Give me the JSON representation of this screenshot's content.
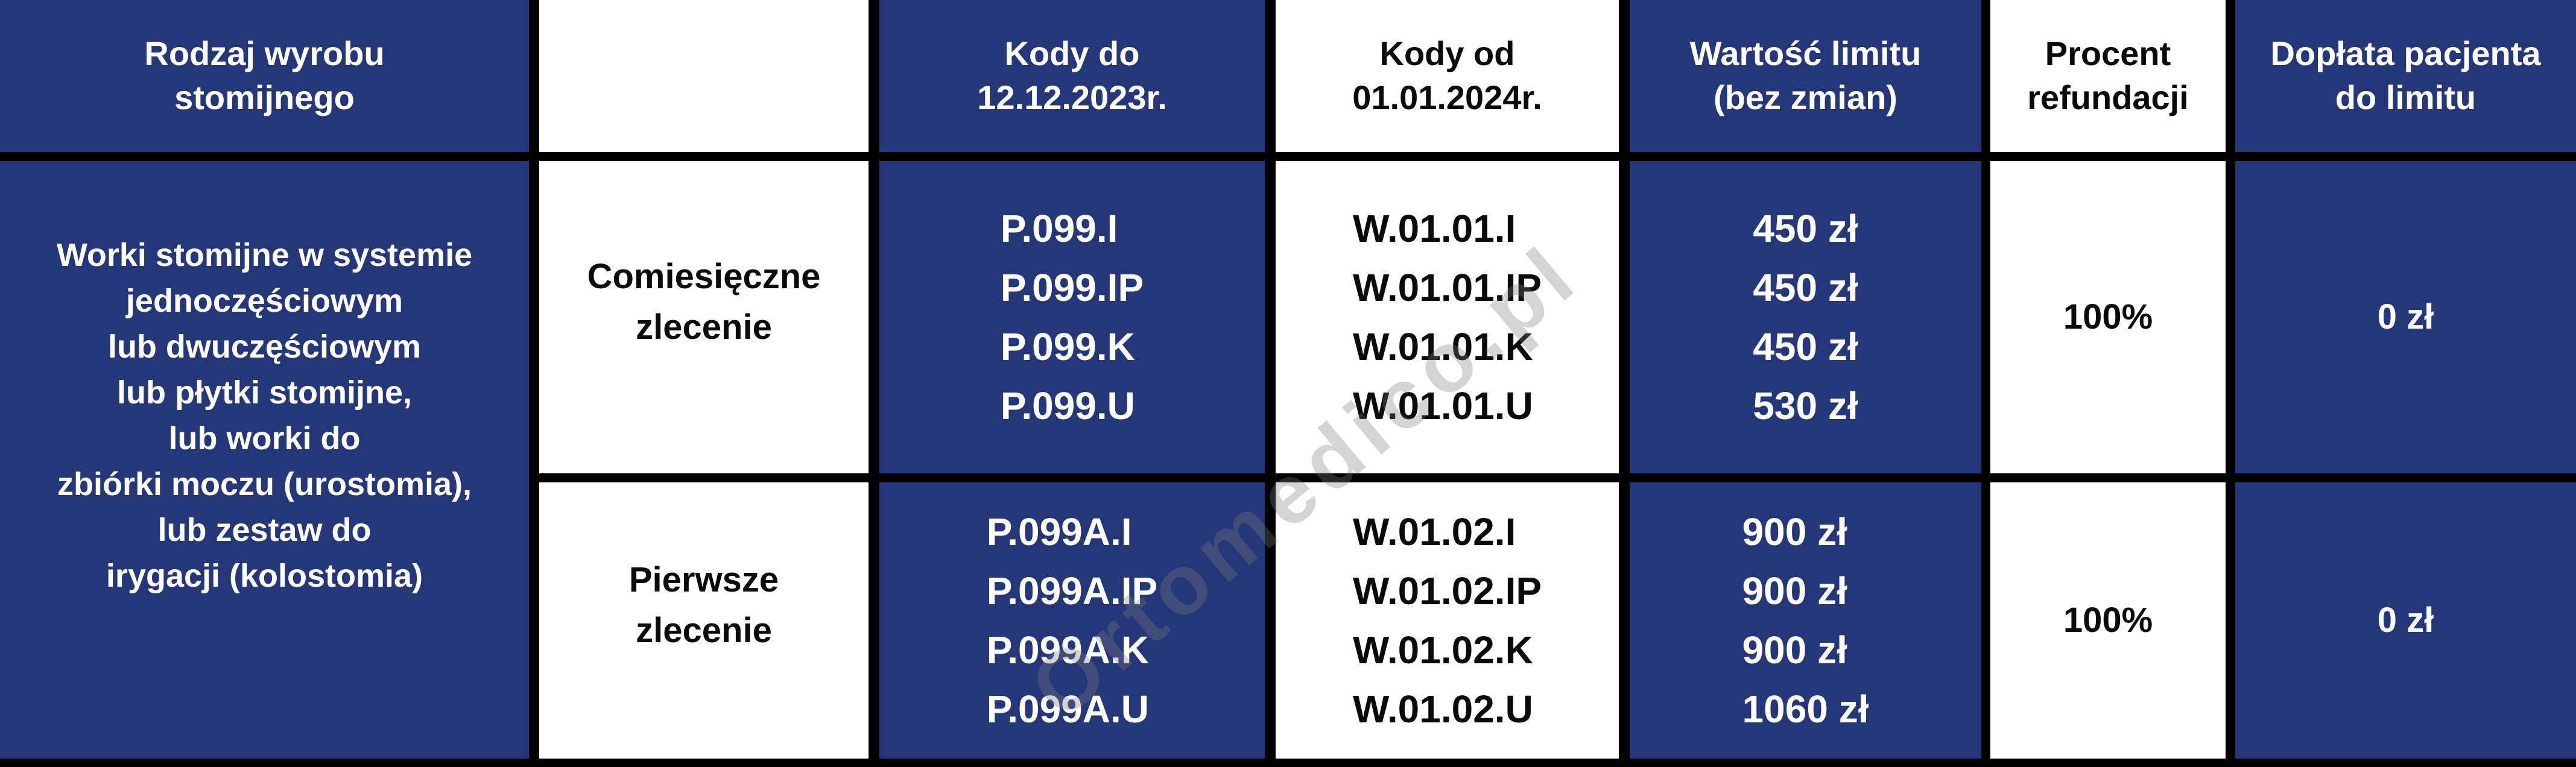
{
  "colors": {
    "navy": "#263779",
    "black": "#000000",
    "white": "#ffffff"
  },
  "watermark": {
    "text": "Ortomedico.pl"
  },
  "header": {
    "product_type": "Rodzaj wyrobu\nstomijnego",
    "blank": "",
    "codes_until": "Kody do\n12.12.2023r.",
    "codes_from": "Kody od\n01.01.2024r.",
    "limit_value": "Wartość limitu\n(bez zmian)",
    "refund_percent": "Procent\nrefundacji",
    "patient_copay": "Dopłata pacjenta\ndo limitu"
  },
  "product": {
    "description": "Worki stomijne w systemie\njednoczęściowym\nlub dwuczęściowym\nlub płytki stomijne,\nlub worki do\nzbiórki moczu (urostomia),\nlub zestaw do\nirygacji (kolostomia)"
  },
  "rows": [
    {
      "order_type": "Comiesięczne\nzlecenie",
      "old_codes": "P.099.I\nP.099.IP\nP.099.K\nP.099.U",
      "new_codes": "W.01.01.I\nW.01.01.IP\nW.01.01.K\nW.01.01.U",
      "limit_values": "450 zł\n450 zł\n450 zł\n530 zł",
      "refund_percent": "100%",
      "patient_copay": "0 zł"
    },
    {
      "order_type": "Pierwsze\nzlecenie",
      "old_codes": "P.099A.I\nP.099A.IP\nP.099A.K\nP.099A.U",
      "new_codes": "W.01.02.I\nW.01.02.IP\nW.01.02.K\nW.01.02.U",
      "limit_values": "900 zł\n900 zł\n900 zł\n1060 zł",
      "refund_percent": "100%",
      "patient_copay": "0 zł"
    }
  ]
}
